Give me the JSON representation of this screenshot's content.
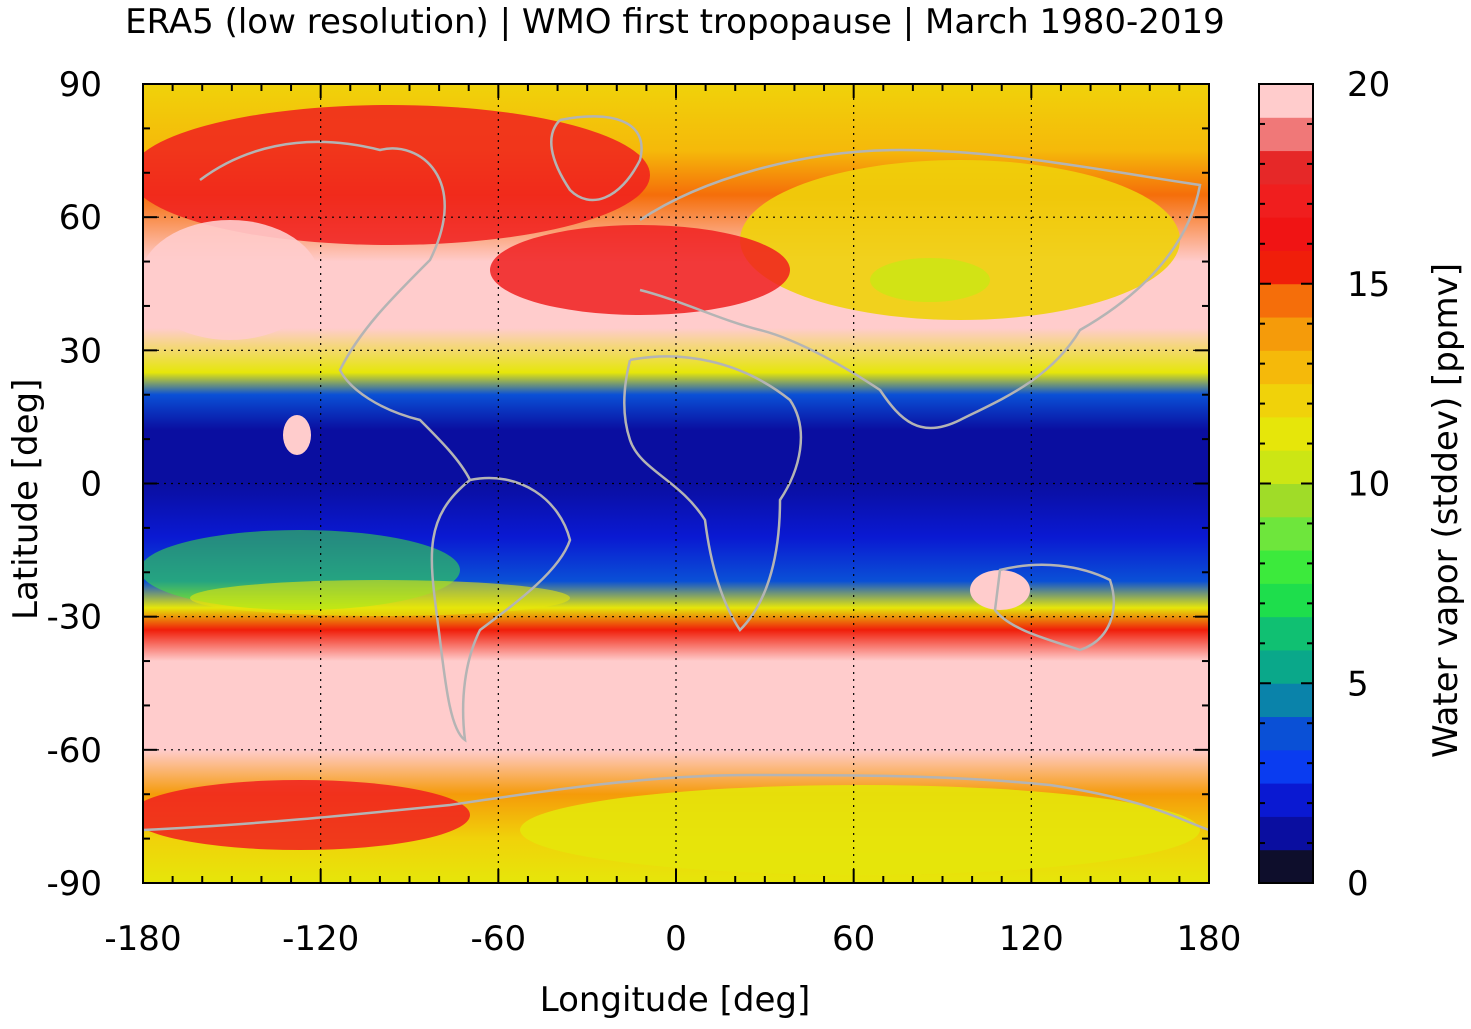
{
  "title": "ERA5 (low resolution) | WMO first tropopause | March 1980-2019",
  "chart_data": {
    "type": "heatmap",
    "xlabel": "Longitude [deg]",
    "ylabel": "Latitude [deg]",
    "xlim": [
      -180,
      180
    ],
    "ylim": [
      -90,
      90
    ],
    "xticks": [
      -180,
      -120,
      -60,
      0,
      60,
      120,
      180
    ],
    "yticks": [
      90,
      60,
      30,
      0,
      -30,
      -60,
      -90
    ],
    "grid": true,
    "colorbar": {
      "label": "Water vapor (stddev) [ppmv]",
      "range": [
        0,
        20
      ],
      "ticks": [
        0,
        5,
        10,
        15,
        20
      ],
      "levels": [
        "#0e0e2c",
        "#0a0ea0",
        "#0a19d2",
        "#0a3cf0",
        "#0a50d6",
        "#0a83aa",
        "#0aa88a",
        "#10c072",
        "#1ede4c",
        "#3cea3c",
        "#6ee63c",
        "#a0dc28",
        "#cce614",
        "#e6e60a",
        "#f0d20a",
        "#f5b90a",
        "#f59b0a",
        "#f56e0a",
        "#f01e0a",
        "#f01414",
        "#f01e1e",
        "#e62828",
        "#f07878",
        "#ffcccc"
      ],
      "level_values": [
        0,
        1,
        2,
        3,
        4,
        5,
        6,
        7,
        8,
        9,
        10,
        11,
        12,
        13,
        14,
        15,
        16,
        17,
        18,
        19,
        20
      ],
      "level_colors": [
        "#0e0e2c",
        "#0a0ea0",
        "#0a19d2",
        "#0a3cf0",
        "#0a50d6",
        "#0a83aa",
        "#0aa88a",
        "#10c072",
        "#1ede4c",
        "#3cea3c",
        "#6ee63c",
        "#a0dc28",
        "#cce614",
        "#e6e60a",
        "#f0d20a",
        "#f5b90a",
        "#f59b0a",
        "#f56e0a",
        "#f01e0a",
        "#f07878",
        "#ffcccc"
      ]
    },
    "zonal_profile": {
      "latitudes": [
        -90,
        -80,
        -70,
        -60,
        -50,
        -40,
        -33,
        -28,
        -22,
        -12,
        0,
        12,
        20,
        25,
        35,
        50,
        65,
        75,
        90
      ],
      "stddev_ppmv": [
        13,
        14,
        16,
        20,
        20,
        20,
        18,
        13,
        4,
        1.5,
        0.5,
        1,
        4,
        13,
        20,
        20,
        17,
        15,
        14
      ]
    }
  }
}
